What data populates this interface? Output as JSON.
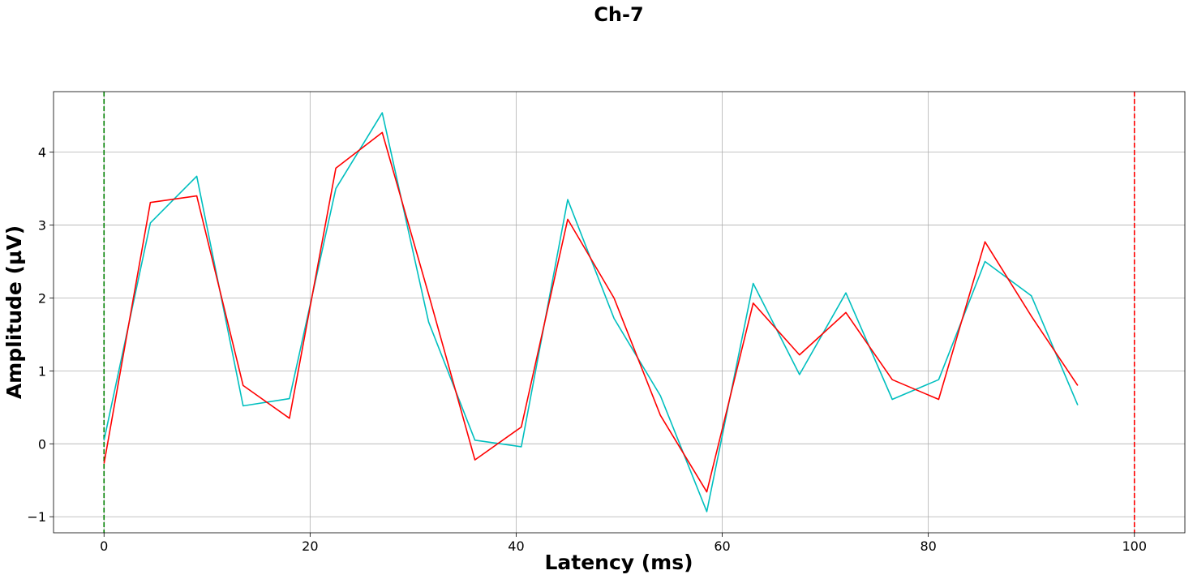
{
  "chart_data": {
    "type": "line",
    "title": "Ch-7",
    "xlabel": "Latency (ms)",
    "ylabel": "Amplitude (µV)",
    "xlim": [
      -4.9,
      104.9
    ],
    "ylim": [
      -1.22,
      4.83
    ],
    "xticks": [
      0,
      20,
      40,
      60,
      80,
      100
    ],
    "yticks": [
      -1,
      0,
      1,
      2,
      3,
      4
    ],
    "ytick_labels": [
      "−1",
      "0",
      "1",
      "2",
      "3",
      "4"
    ],
    "grid": true,
    "vlines": [
      {
        "x": 0,
        "color": "#008000",
        "style": "dashed"
      },
      {
        "x": 100,
        "color": "#ff0000",
        "style": "dashed"
      }
    ],
    "series": [
      {
        "color": "#00bfbf",
        "x": [
          0,
          4.5,
          9,
          13.5,
          18,
          22.5,
          27,
          31.5,
          36,
          40.5,
          45,
          49.5,
          54,
          58.5,
          63,
          67.5,
          72,
          76.5,
          81,
          85.5,
          90,
          94.5
        ],
        "y": [
          0.05,
          3.03,
          3.67,
          0.52,
          0.62,
          3.5,
          4.54,
          1.67,
          0.05,
          -0.04,
          3.35,
          1.72,
          0.66,
          -0.93,
          2.2,
          0.95,
          2.07,
          0.61,
          0.88,
          2.5,
          2.03,
          0.53
        ]
      },
      {
        "color": "#ff0000",
        "x": [
          0,
          4.5,
          9,
          13.5,
          18,
          22.5,
          27,
          31.5,
          36,
          40.5,
          45,
          49.5,
          54,
          58.5,
          63,
          67.5,
          72,
          76.5,
          81,
          85.5,
          90,
          94.5
        ],
        "y": [
          -0.27,
          3.31,
          3.4,
          0.8,
          0.35,
          3.78,
          4.27,
          2.05,
          -0.22,
          0.23,
          3.08,
          2.0,
          0.39,
          -0.66,
          1.93,
          1.22,
          1.8,
          0.88,
          0.61,
          2.77,
          1.75,
          0.8
        ]
      }
    ]
  }
}
